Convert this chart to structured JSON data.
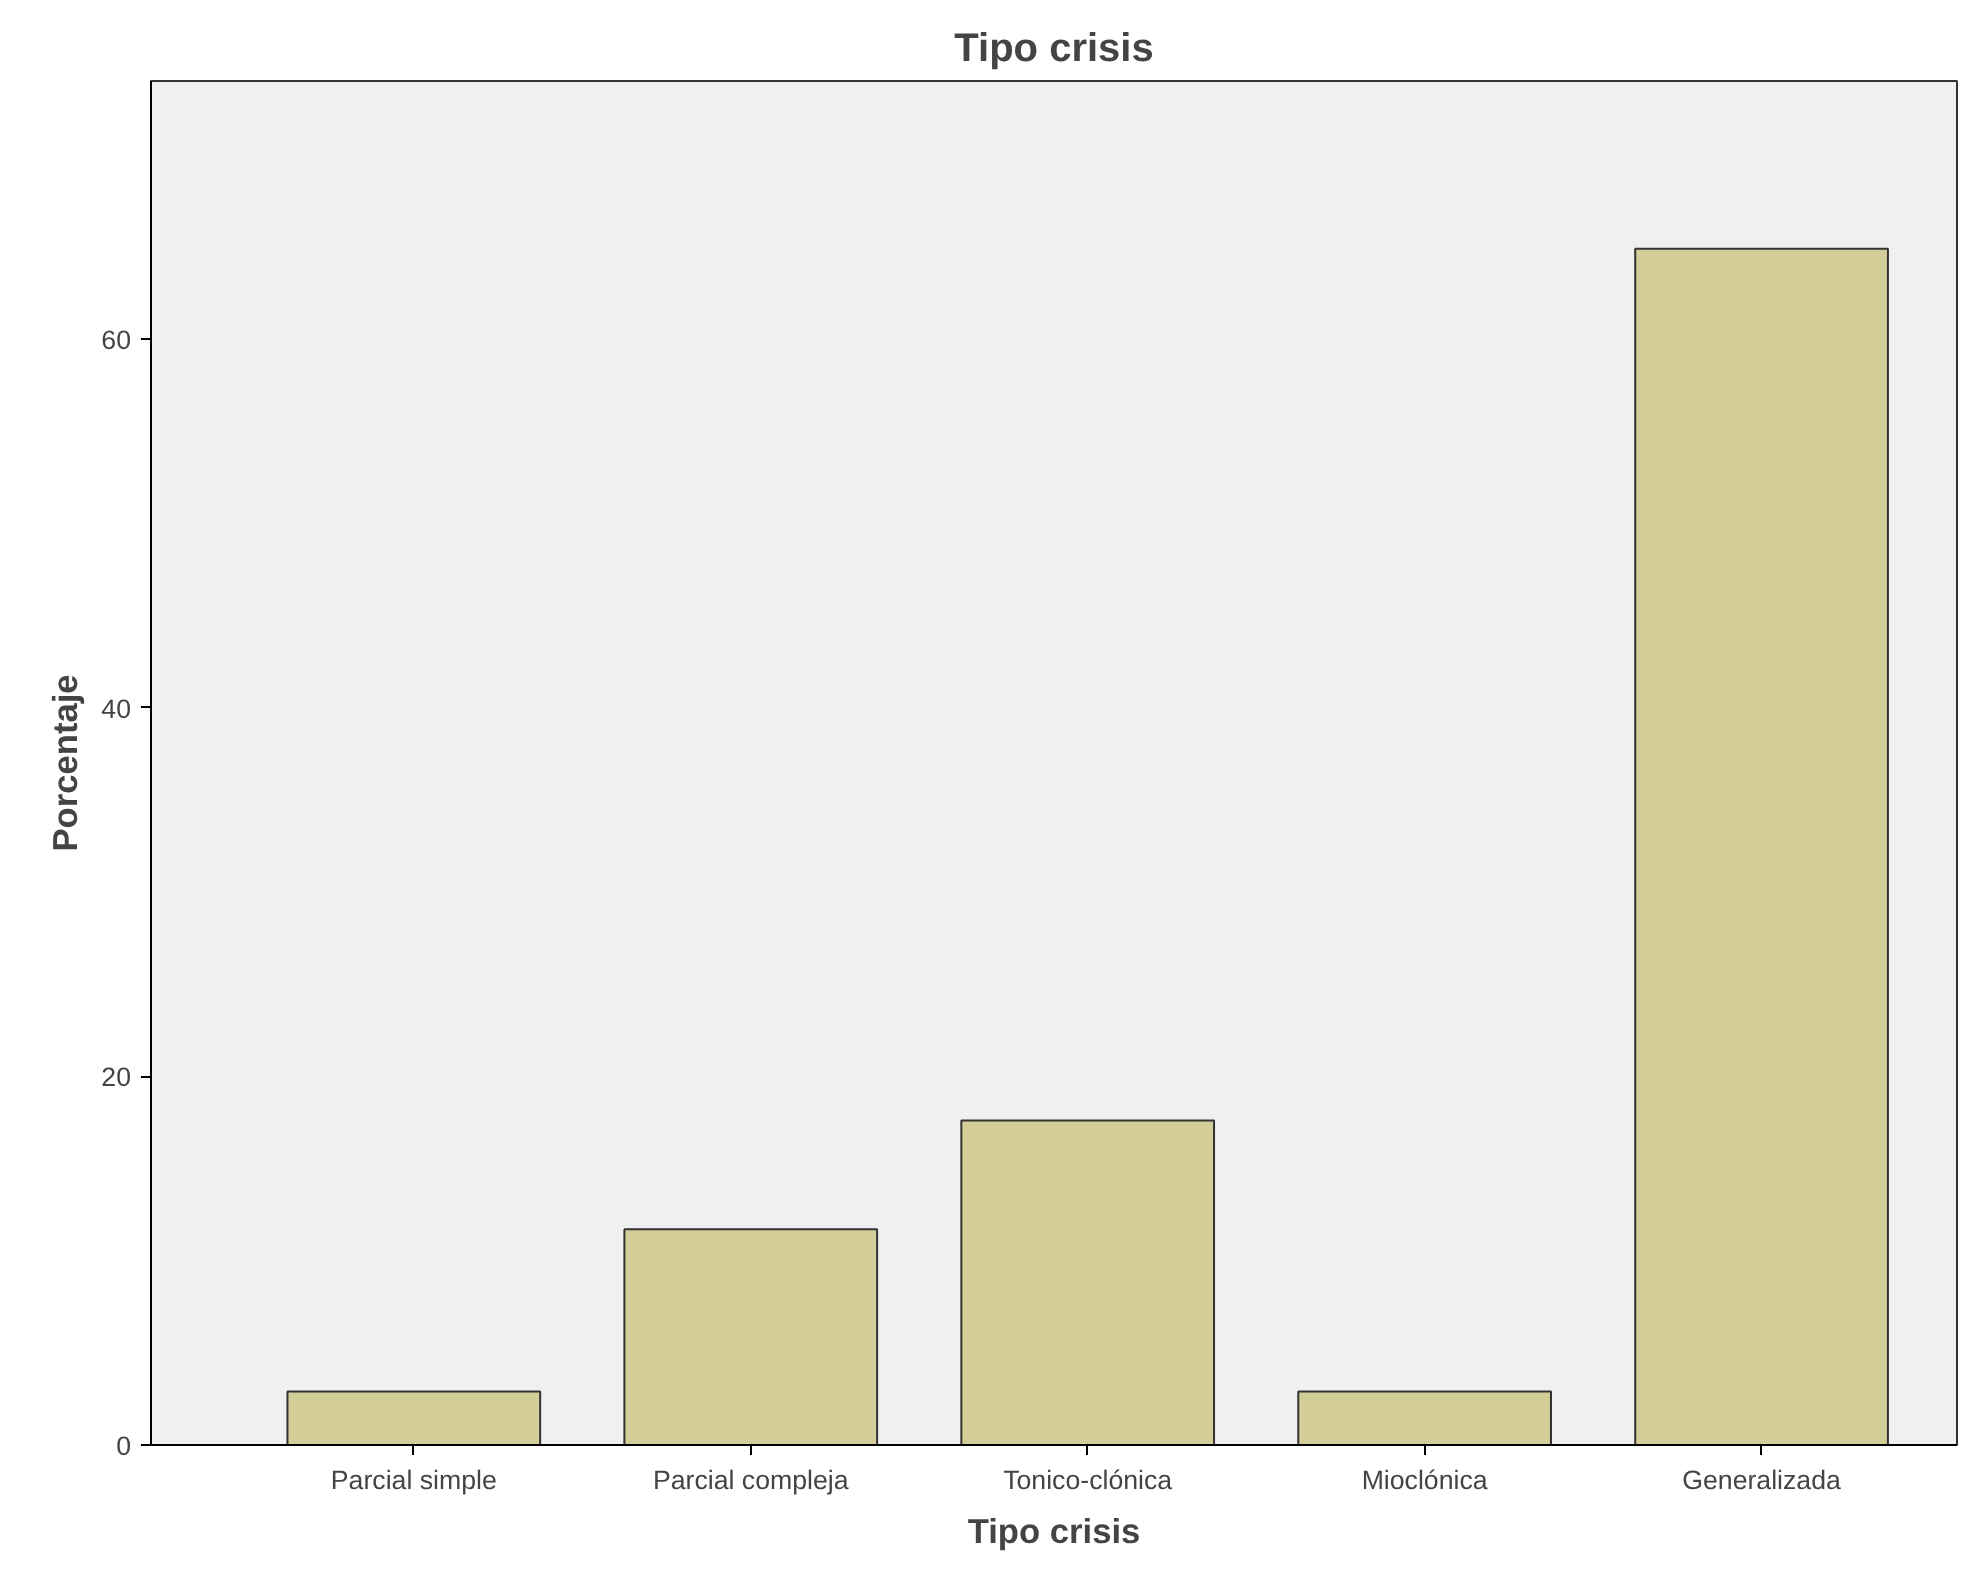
{
  "chart_data": {
    "type": "bar",
    "title": "Tipo crisis",
    "xlabel": "Tipo crisis",
    "ylabel": "Porcentaje",
    "categories": [
      "Parcial simple",
      "Parcial compleja",
      "Tonico-clónica",
      "Mioclónica",
      "Generalizada"
    ],
    "values": [
      2.9,
      11.7,
      17.6,
      2.9,
      64.9
    ],
    "color": "#d3ce97",
    "ylim": [
      0,
      74
    ],
    "yticks": [
      0,
      20,
      40,
      60
    ],
    "grid": false
  }
}
